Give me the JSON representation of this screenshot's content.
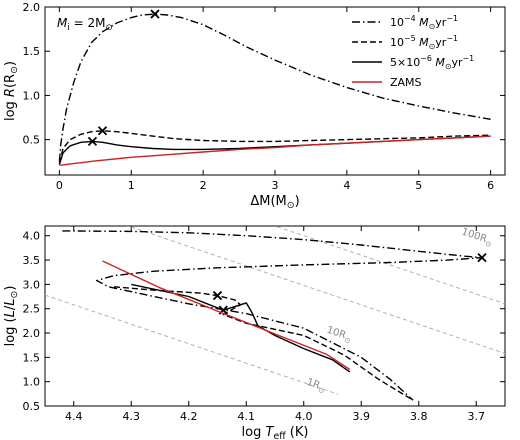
{
  "chart_data": [
    {
      "type": "line",
      "xlabel_parts": [
        "ΔM(M",
        "⊙",
        ")"
      ],
      "ylabel_parts": [
        "log ",
        "R",
        "(R",
        "⊙",
        ")"
      ],
      "annotation_parts": [
        "M",
        "i",
        " = 2M",
        "⊙"
      ],
      "xlim": [
        -0.2,
        6.2
      ],
      "ylim": [
        0.1,
        2.0
      ],
      "xticks": [
        0,
        1,
        2,
        3,
        4,
        5,
        6
      ],
      "yticks": [
        0.5,
        1.0,
        1.5,
        2.0
      ],
      "ytick_labels": [
        "0.5",
        "1.0",
        "1.5",
        "2.0"
      ],
      "legend_position": "top-right",
      "series": [
        {
          "name_parts": [
            "10",
            "−4",
            " M",
            "⊙",
            "yr",
            "−1"
          ],
          "style": "dashdot",
          "color": "#000000",
          "points": [
            [
              0.0,
              0.25
            ],
            [
              0.02,
              0.45
            ],
            [
              0.05,
              0.62
            ],
            [
              0.1,
              0.85
            ],
            [
              0.2,
              1.15
            ],
            [
              0.3,
              1.38
            ],
            [
              0.45,
              1.6
            ],
            [
              0.6,
              1.72
            ],
            [
              0.8,
              1.82
            ],
            [
              1.0,
              1.88
            ],
            [
              1.15,
              1.91
            ],
            [
              1.33,
              1.92
            ],
            [
              1.5,
              1.91
            ],
            [
              1.7,
              1.88
            ],
            [
              2.0,
              1.8
            ],
            [
              2.3,
              1.68
            ],
            [
              2.6,
              1.55
            ],
            [
              3.0,
              1.4
            ],
            [
              3.5,
              1.23
            ],
            [
              4.0,
              1.09
            ],
            [
              4.5,
              0.97
            ],
            [
              5.0,
              0.88
            ],
            [
              5.5,
              0.8
            ],
            [
              6.0,
              0.73
            ]
          ],
          "marker": [
            1.33,
            1.92
          ]
        },
        {
          "name_parts": [
            "10",
            "−5",
            " M",
            "⊙",
            "yr",
            "−1"
          ],
          "style": "dashed",
          "color": "#000000",
          "points": [
            [
              0.0,
              0.23
            ],
            [
              0.05,
              0.4
            ],
            [
              0.15,
              0.5
            ],
            [
              0.3,
              0.56
            ],
            [
              0.45,
              0.59
            ],
            [
              0.6,
              0.6
            ],
            [
              0.8,
              0.59
            ],
            [
              1.0,
              0.57
            ],
            [
              1.3,
              0.54
            ],
            [
              1.6,
              0.51
            ],
            [
              2.0,
              0.49
            ],
            [
              2.5,
              0.48
            ],
            [
              3.0,
              0.48
            ],
            [
              3.5,
              0.49
            ],
            [
              4.0,
              0.5
            ],
            [
              4.5,
              0.51
            ],
            [
              5.0,
              0.52
            ],
            [
              5.5,
              0.54
            ],
            [
              6.0,
              0.55
            ]
          ],
          "marker": [
            0.6,
            0.6
          ]
        },
        {
          "name_parts": [
            "5×10",
            "−6",
            " M",
            "⊙",
            "yr",
            "−1"
          ],
          "style": "solid",
          "color": "#000000",
          "points": [
            [
              0.0,
              0.22
            ],
            [
              0.05,
              0.35
            ],
            [
              0.15,
              0.43
            ],
            [
              0.3,
              0.47
            ],
            [
              0.46,
              0.48
            ],
            [
              0.6,
              0.47
            ],
            [
              0.8,
              0.44
            ],
            [
              1.0,
              0.42
            ],
            [
              1.3,
              0.4
            ],
            [
              1.6,
              0.39
            ],
            [
              2.0,
              0.39
            ],
            [
              2.5,
              0.4
            ],
            [
              3.0,
              0.42
            ],
            [
              3.5,
              0.44
            ],
            [
              4.0,
              0.46
            ],
            [
              4.5,
              0.48
            ],
            [
              5.0,
              0.5
            ],
            [
              5.5,
              0.52
            ],
            [
              6.0,
              0.54
            ]
          ],
          "marker": [
            0.46,
            0.48
          ]
        },
        {
          "name": "ZAMS",
          "style": "solid",
          "color": "#cc2222",
          "points": [
            [
              0.0,
              0.21
            ],
            [
              0.5,
              0.26
            ],
            [
              1.0,
              0.3
            ],
            [
              1.5,
              0.33
            ],
            [
              2.0,
              0.36
            ],
            [
              2.5,
              0.39
            ],
            [
              3.0,
              0.41
            ],
            [
              3.5,
              0.44
            ],
            [
              4.0,
              0.46
            ],
            [
              4.5,
              0.48
            ],
            [
              5.0,
              0.5
            ],
            [
              5.5,
              0.52
            ],
            [
              6.0,
              0.54
            ]
          ]
        }
      ]
    },
    {
      "type": "line",
      "xlabel_parts": [
        "log ",
        "T",
        "eff",
        " (K)"
      ],
      "ylabel_parts": [
        "log (",
        "L",
        "/",
        "L",
        "⊙",
        ")"
      ],
      "xlim": [
        4.45,
        3.65
      ],
      "ylim": [
        0.5,
        4.2
      ],
      "xticks": [
        4.4,
        4.3,
        4.2,
        4.1,
        4.0,
        3.9,
        3.8,
        3.7
      ],
      "xtick_labels": [
        "4.4",
        "4.3",
        "4.2",
        "4.1",
        "4.0",
        "3.9",
        "3.8",
        "3.7"
      ],
      "yticks": [
        0.5,
        1.0,
        1.5,
        2.0,
        2.5,
        3.0,
        3.5,
        4.0
      ],
      "ytick_labels": [
        "0.5",
        "1.0",
        "1.5",
        "2.0",
        "2.5",
        "3.0",
        "3.5",
        "4.0"
      ],
      "radius_lines": [
        {
          "label_parts": [
            "1R",
            "⊙"
          ],
          "points": [
            [
              4.45,
              2.78
            ],
            [
              3.94,
              0.74
            ]
          ],
          "label_at": [
            3.98,
            0.88
          ]
        },
        {
          "label_parts": [
            "10R",
            "⊙"
          ],
          "points": [
            [
              4.45,
              4.78
            ],
            [
              3.65,
              1.58
            ]
          ],
          "label_at": [
            3.94,
            1.93
          ]
        },
        {
          "label_parts": [
            "100R",
            "⊙"
          ],
          "points": [
            [
              4.15,
              4.6
            ],
            [
              3.65,
              2.6
            ]
          ],
          "label_at": [
            3.7,
            3.93
          ]
        }
      ],
      "series": [
        {
          "style": "dashdot",
          "color": "#000000",
          "points": [
            [
              4.42,
              4.1
            ],
            [
              4.3,
              4.09
            ],
            [
              4.2,
              4.06
            ],
            [
              4.1,
              4.0
            ],
            [
              4.0,
              3.92
            ],
            [
              3.9,
              3.81
            ],
            [
              3.8,
              3.68
            ],
            [
              3.72,
              3.58
            ],
            [
              3.69,
              3.55
            ],
            [
              3.75,
              3.5
            ],
            [
              3.85,
              3.45
            ],
            [
              4.0,
              3.4
            ],
            [
              4.15,
              3.34
            ],
            [
              4.26,
              3.27
            ],
            [
              4.33,
              3.18
            ],
            [
              4.36,
              3.08
            ],
            [
              4.34,
              2.95
            ],
            [
              4.28,
              2.8
            ],
            [
              4.2,
              2.6
            ],
            [
              4.1,
              2.4
            ],
            [
              4.0,
              2.1
            ],
            [
              3.95,
              1.8
            ],
            [
              3.9,
              1.5
            ],
            [
              3.85,
              1.05
            ],
            [
              3.81,
              0.62
            ]
          ],
          "marker": [
            3.69,
            3.55
          ]
        },
        {
          "style": "dashed",
          "color": "#000000",
          "points": [
            [
              4.33,
              2.95
            ],
            [
              4.26,
              2.88
            ],
            [
              4.18,
              2.82
            ],
            [
              4.15,
              2.77
            ],
            [
              4.12,
              2.68
            ],
            [
              4.11,
              2.58
            ],
            [
              4.13,
              2.45
            ],
            [
              4.14,
              2.38
            ],
            [
              4.1,
              2.2
            ],
            [
              4.0,
              1.95
            ],
            [
              3.93,
              1.55
            ],
            [
              3.87,
              1.05
            ],
            [
              3.81,
              0.62
            ]
          ],
          "marker": [
            4.15,
            2.77
          ]
        },
        {
          "style": "solid",
          "color": "#000000",
          "points": [
            [
              4.3,
              3.0
            ],
            [
              4.2,
              2.75
            ],
            [
              4.14,
              2.47
            ],
            [
              4.1,
              2.62
            ],
            [
              4.09,
              2.42
            ],
            [
              4.08,
              2.15
            ],
            [
              4.05,
              1.95
            ],
            [
              4.0,
              1.68
            ],
            [
              3.95,
              1.45
            ],
            [
              3.92,
              1.2
            ]
          ],
          "marker": [
            4.14,
            2.47
          ]
        },
        {
          "name": "ZAMS",
          "style": "solid",
          "color": "#cc2222",
          "points": [
            [
              4.35,
              3.48
            ],
            [
              4.25,
              2.93
            ],
            [
              4.15,
              2.45
            ],
            [
              4.05,
              1.98
            ],
            [
              3.96,
              1.56
            ],
            [
              3.92,
              1.25
            ]
          ]
        }
      ]
    }
  ]
}
